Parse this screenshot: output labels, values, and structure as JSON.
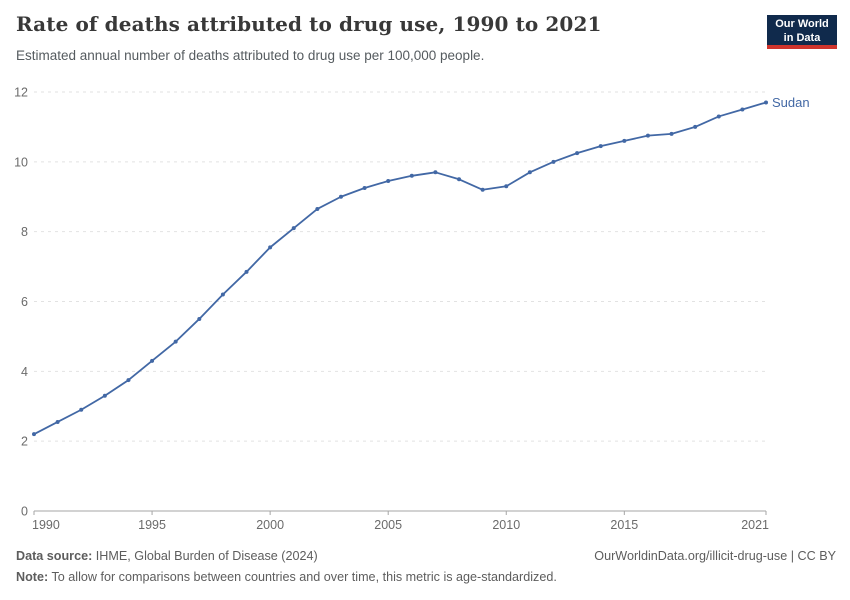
{
  "header": {
    "title": "Rate of deaths attributed to drug use, 1990 to 2021",
    "subtitle": "Estimated annual number of deaths attributed to drug use per 100,000 people."
  },
  "logo": {
    "line1": "Our World",
    "line2": "in Data",
    "bg_color": "#102a4c",
    "accent_color": "#d0342c"
  },
  "chart_data": {
    "type": "line",
    "title": "Rate of deaths attributed to drug use, 1990 to 2021",
    "subtitle": "Estimated annual number of deaths attributed to drug use per 100,000 people.",
    "xlabel": "",
    "ylabel": "",
    "xlim": [
      1990,
      2021
    ],
    "ylim": [
      0,
      12
    ],
    "x_ticks": [
      1990,
      1995,
      2000,
      2005,
      2010,
      2015,
      2021
    ],
    "y_ticks": [
      0,
      2,
      4,
      6,
      8,
      10,
      12
    ],
    "grid": "horizontal-dashed",
    "legend_position": "end-of-line-label",
    "grid_color": "#e2e2e2",
    "axis_color": "#a5a5a5",
    "tick_label_color": "#6b6b6b",
    "series": [
      {
        "name": "Sudan",
        "color": "#4268a5",
        "x": [
          1990,
          1991,
          1992,
          1993,
          1994,
          1995,
          1996,
          1997,
          1998,
          1999,
          2000,
          2001,
          2002,
          2003,
          2004,
          2005,
          2006,
          2007,
          2008,
          2009,
          2010,
          2011,
          2012,
          2013,
          2014,
          2015,
          2016,
          2017,
          2018,
          2019,
          2020,
          2021
        ],
        "values": [
          2.2,
          2.55,
          2.9,
          3.3,
          3.75,
          4.3,
          4.85,
          5.5,
          6.2,
          6.85,
          7.55,
          8.1,
          8.65,
          9.0,
          9.25,
          9.45,
          9.6,
          9.7,
          9.5,
          9.2,
          9.3,
          9.7,
          10.0,
          10.25,
          10.45,
          10.6,
          10.75,
          10.8,
          11.0,
          11.3,
          11.5,
          11.7
        ]
      }
    ]
  },
  "footer": {
    "source_label": "Data source:",
    "source_value": "IHME, Global Burden of Disease (2024)",
    "credit": "OurWorldinData.org/illicit-drug-use | CC BY",
    "note_label": "Note:",
    "note_value": "To allow for comparisons between countries and over time, this metric is age-standardized."
  }
}
